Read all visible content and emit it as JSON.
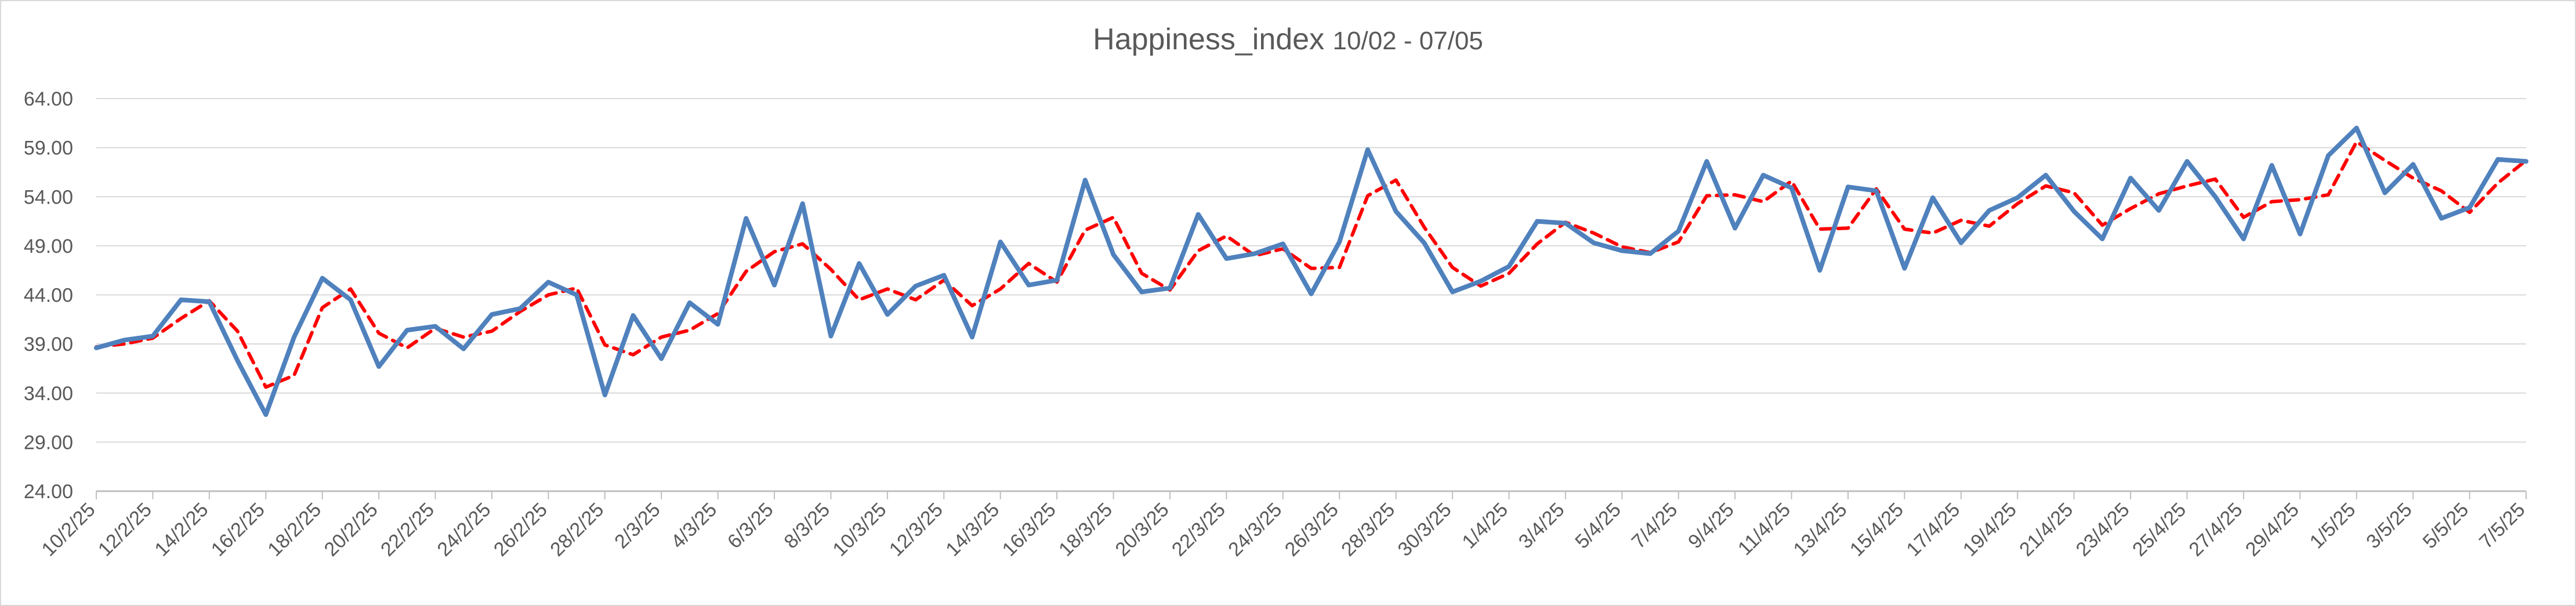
{
  "chart_data": {
    "type": "line",
    "title": "Happiness_index",
    "subtitle": "10/02 - 07/05",
    "xlabel": "",
    "ylabel": "",
    "ylim": [
      24,
      64
    ],
    "y_ticks": [
      "24.00",
      "29.00",
      "34.00",
      "39.00",
      "44.00",
      "49.00",
      "54.00",
      "59.00",
      "64.00"
    ],
    "x_tick_labels": [
      "10/2/25",
      "12/2/25",
      "14/2/25",
      "16/2/25",
      "18/2/25",
      "20/2/25",
      "22/2/25",
      "24/2/25",
      "26/2/25",
      "28/2/25",
      "2/3/25",
      "4/3/25",
      "6/3/25",
      "8/3/25",
      "10/3/25",
      "12/3/25",
      "14/3/25",
      "16/3/25",
      "18/3/25",
      "20/3/25",
      "22/3/25",
      "24/3/25",
      "26/3/25",
      "28/3/25",
      "30/3/25",
      "1/4/25",
      "3/4/25",
      "5/4/25",
      "7/4/25",
      "9/4/25",
      "11/4/25",
      "13/4/25",
      "15/4/25",
      "17/4/25",
      "19/4/25",
      "21/4/25",
      "23/4/25",
      "25/4/25",
      "27/4/25",
      "29/4/25",
      "1/5/25",
      "3/5/25",
      "5/5/25",
      "7/5/25"
    ],
    "grid": true,
    "legend": "none",
    "colors": {
      "series": "#4f81bd",
      "trend": "#ff0000"
    },
    "series": [
      {
        "values": [
          38.6,
          39.4,
          39.8,
          43.5,
          43.3,
          37.3,
          31.8,
          39.7,
          45.7,
          43.5,
          36.7,
          40.4,
          40.8,
          38.5,
          42.0,
          42.6,
          45.3,
          44.0,
          33.8,
          41.9,
          37.5,
          43.2,
          41.0,
          51.8,
          45.0,
          53.3,
          39.8,
          47.2,
          42.0,
          44.9,
          46.0,
          39.7,
          49.4,
          45.0,
          45.5,
          55.7,
          48.1,
          44.3,
          44.7,
          52.2,
          47.7,
          48.2,
          49.2,
          44.1,
          49.4,
          58.8,
          52.5,
          49.3,
          44.3,
          45.4,
          46.9,
          51.5,
          51.3,
          49.3,
          48.5,
          48.2,
          50.5,
          57.6,
          50.8,
          56.2,
          54.9,
          46.5,
          55.0,
          54.6,
          46.7,
          53.9,
          49.3,
          52.6,
          53.9,
          56.2,
          52.5,
          49.7,
          55.9,
          52.6,
          57.6,
          54.0,
          49.7,
          57.2,
          50.2,
          58.2,
          61.0,
          54.4,
          57.3,
          51.8,
          52.9,
          57.8,
          57.6
        ]
      },
      {
        "values": [
          38.7,
          39.0,
          39.6,
          41.6,
          43.4,
          40.3,
          34.6,
          35.8,
          42.7,
          44.6,
          40.1,
          38.6,
          40.6,
          39.7,
          40.3,
          42.3,
          44.0,
          44.7,
          38.9,
          37.9,
          39.7,
          40.4,
          42.1,
          46.4,
          48.4,
          49.2,
          46.6,
          43.5,
          44.6,
          43.5,
          45.5,
          42.9,
          44.6,
          47.2,
          45.3,
          50.6,
          51.9,
          46.2,
          44.5,
          48.5,
          50.0,
          48.0,
          48.7,
          46.7,
          46.8,
          54.1,
          55.7,
          50.9,
          46.8,
          44.9,
          46.2,
          49.2,
          51.4,
          50.3,
          48.9,
          48.3,
          49.4,
          54.1,
          54.2,
          53.5,
          55.6,
          50.7,
          50.8,
          54.8,
          50.7,
          50.3,
          51.6,
          51.0,
          53.3,
          55.1,
          54.4,
          51.1,
          52.8,
          54.3,
          55.1,
          55.8,
          51.9,
          53.5,
          53.7,
          54.2,
          59.6,
          57.7,
          55.9,
          54.6,
          52.4,
          55.4,
          57.7
        ]
      }
    ]
  }
}
